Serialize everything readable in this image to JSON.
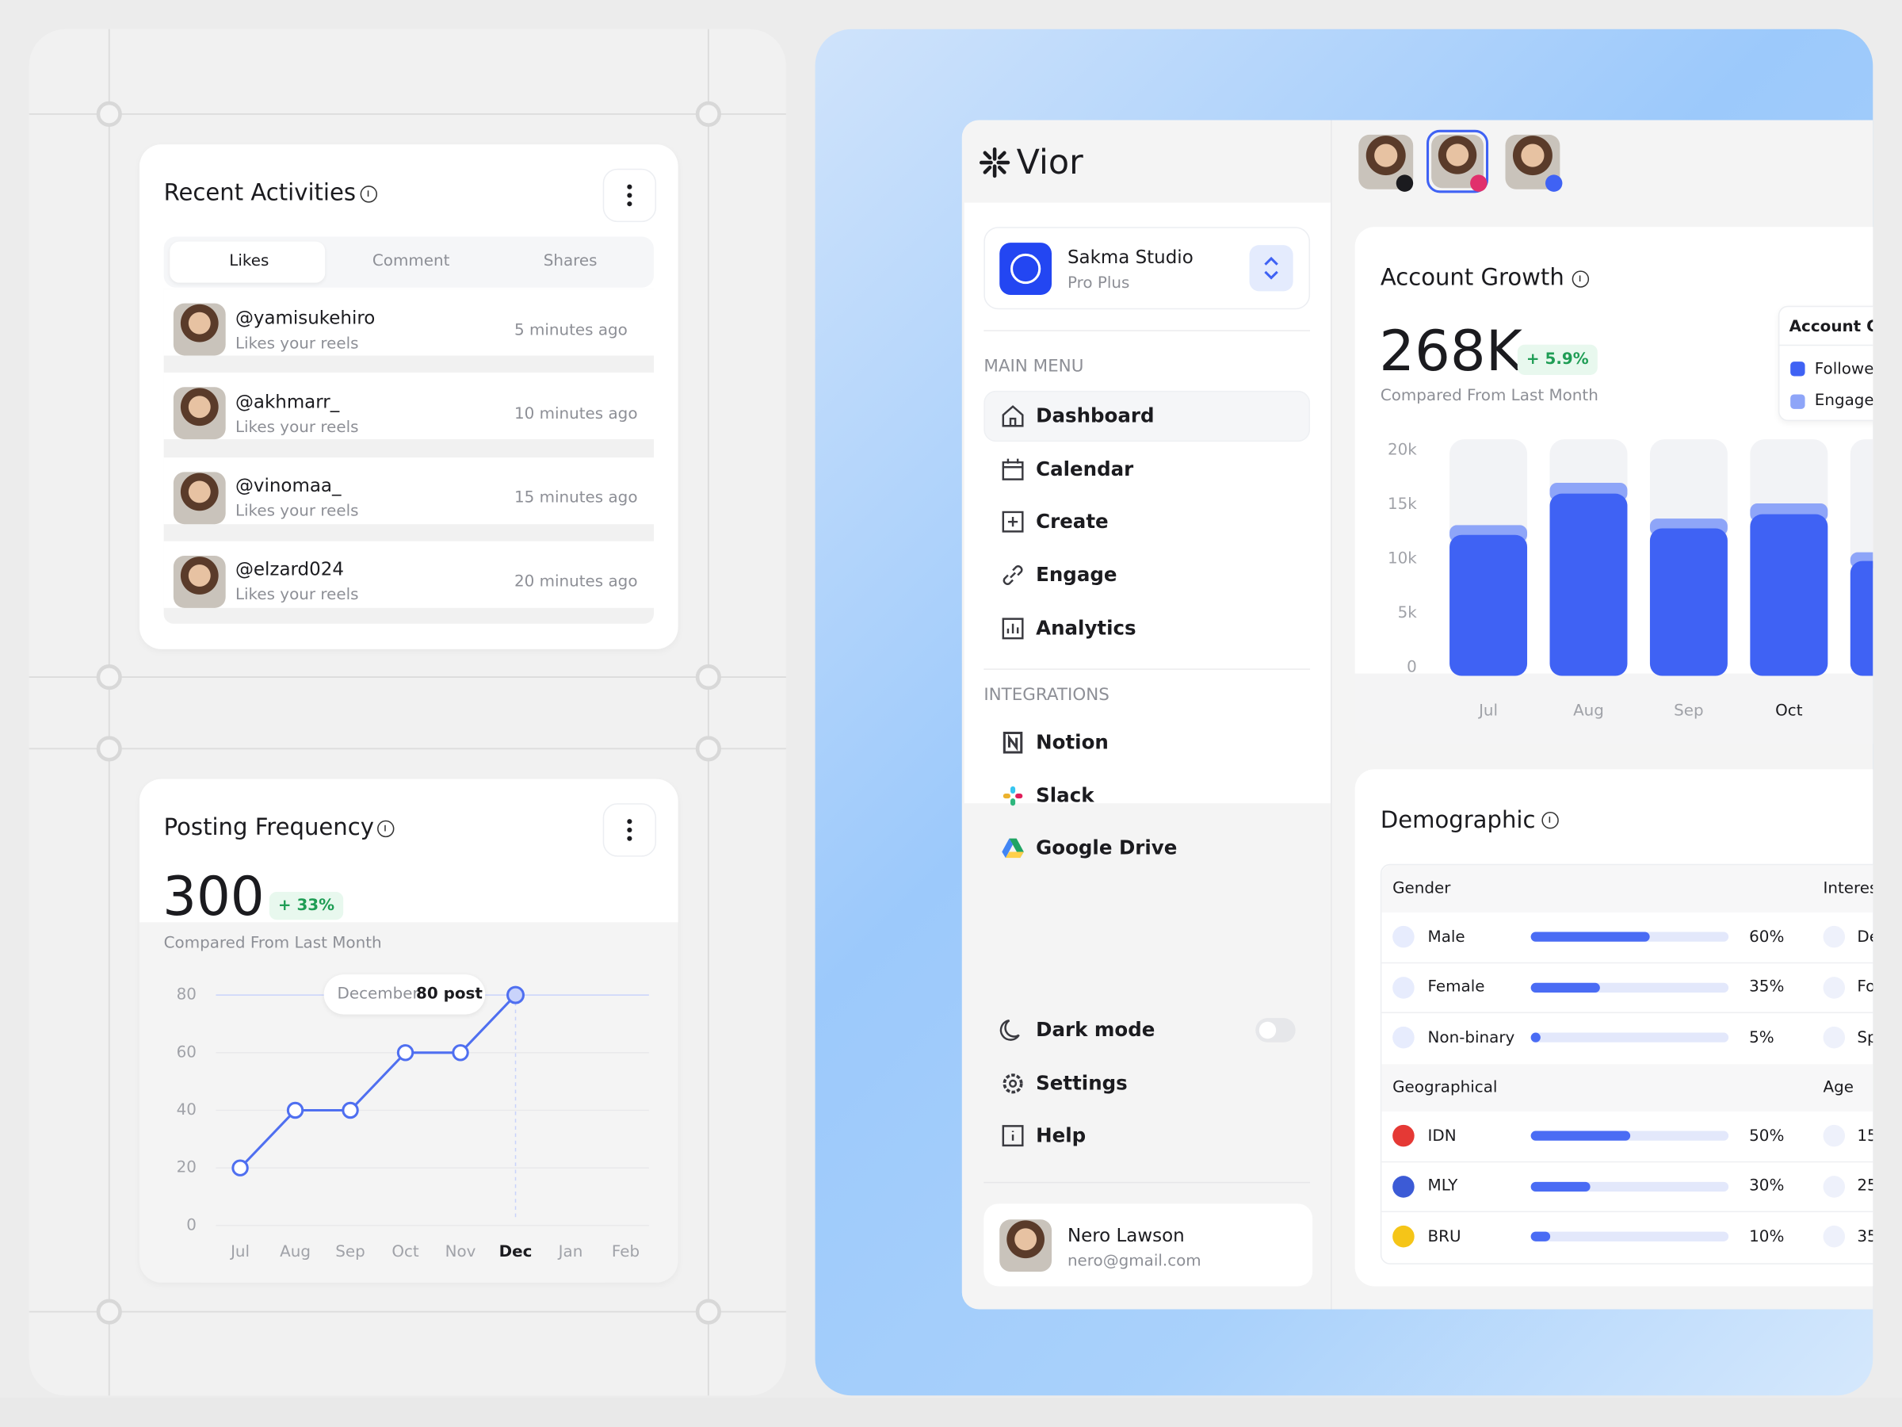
{
  "recent_activities": {
    "title": "Recent Activities",
    "tabs": [
      "Likes",
      "Comment",
      "Shares"
    ],
    "items": [
      {
        "user": "@yamisukehiro",
        "action": "Likes your reels",
        "time": "5 minutes ago"
      },
      {
        "user": "@akhmarr_",
        "action": "Likes your reels",
        "time": "10 minutes ago"
      },
      {
        "user": "@vinomaa_",
        "action": "Likes your reels",
        "time": "15 minutes ago"
      },
      {
        "user": "@elzard024",
        "action": "Likes your reels",
        "time": "20 minutes ago"
      }
    ]
  },
  "posting_frequency": {
    "title": "Posting Frequency",
    "value": 300,
    "change": "+ 33%",
    "caption": "Compared From Last Month",
    "tooltip": {
      "month": "December",
      "value": "80 post"
    },
    "chart": {
      "type": "line",
      "categories": [
        "Jul",
        "Aug",
        "Sep",
        "Oct",
        "Nov",
        "Dec",
        "Jan",
        "Feb"
      ],
      "values": [
        20,
        40,
        40,
        60,
        60,
        80,
        null,
        null
      ],
      "color": "#4f6ff0",
      "ylim": [
        0,
        80
      ],
      "yticks": [
        0,
        20,
        40,
        60,
        80
      ],
      "highlight_index": 5
    }
  },
  "app": {
    "logo": "Vior",
    "workspace": {
      "name": "Sakma Studio",
      "plan": "Pro Plus"
    },
    "main_menu": {
      "title": "MAIN MENU",
      "items": [
        "Dashboard",
        "Calendar",
        "Create",
        "Engage",
        "Analytics"
      ]
    },
    "integrations": {
      "title": "INTEGRATIONS",
      "items": [
        "Notion",
        "Slack",
        "Google Drive"
      ]
    },
    "bottom_menu": [
      "Dark mode",
      "Settings",
      "Help"
    ],
    "user": {
      "name": "Nero Lawson",
      "email": "nero@gmail.com"
    }
  },
  "account_growth": {
    "title": "Account Growth",
    "value": "268K",
    "change": "+ 5.9%",
    "caption": "Compared From Last Month",
    "chart": {
      "type": "bar",
      "stacked": true,
      "legend_title": "Account Gr",
      "legend": "top-right",
      "categories": [
        "Jul",
        "Aug",
        "Sep",
        "Oct",
        null
      ],
      "series": [
        {
          "name": "Followe",
          "color": "#3f62f4",
          "values": [
            12200,
            16000,
            12800,
            14100,
            9800
          ]
        },
        {
          "name": "Engage",
          "color": "#8ea5f8",
          "values": [
            900,
            1000,
            900,
            1000,
            800
          ]
        }
      ],
      "ylim": [
        0,
        20000
      ],
      "yticks": [
        0,
        {
          "value": 5000,
          "label": "5k"
        },
        {
          "value": 10000,
          "label": "10k"
        },
        {
          "value": 15000,
          "label": "15k"
        },
        {
          "value": 20000,
          "label": "20k"
        }
      ],
      "highlight_index": 3
    }
  },
  "demographic": {
    "title": "Demographic",
    "gender": {
      "title": "Gender",
      "categories": [
        "Male",
        "Female",
        "Non-binary"
      ],
      "values": [
        60,
        35,
        5
      ],
      "value_labels": [
        "60%",
        "35%",
        "5%"
      ],
      "xlim": [
        0,
        100
      ]
    },
    "interests": {
      "title": "Interes",
      "items": [
        "De",
        "Fo",
        "Sp"
      ]
    },
    "geographical": {
      "title": "Geographical",
      "categories": [
        "IDN",
        "MLY",
        "BRU"
      ],
      "values": [
        50,
        30,
        10
      ],
      "value_labels": [
        "50%",
        "30%",
        "10%"
      ],
      "xlim": [
        0,
        100
      ]
    },
    "age": {
      "title": "Age",
      "items": [
        "15",
        "25",
        "35"
      ]
    }
  }
}
